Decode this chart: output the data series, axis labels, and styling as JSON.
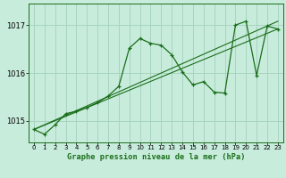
{
  "xlabel": "Graphe pression niveau de la mer (hPa)",
  "background_color": "#c8ecdc",
  "grid_color": "#a8d4c0",
  "line_color": "#1a6e1a",
  "ylim": [
    1014.55,
    1017.45
  ],
  "xlim": [
    -0.5,
    23.5
  ],
  "yticks": [
    1015,
    1016,
    1017
  ],
  "xticks": [
    0,
    1,
    2,
    3,
    4,
    5,
    6,
    7,
    8,
    9,
    10,
    11,
    12,
    13,
    14,
    15,
    16,
    17,
    18,
    19,
    20,
    21,
    22,
    23
  ],
  "series1_x": [
    0,
    1,
    2,
    3,
    4,
    5,
    6,
    7,
    8,
    9,
    10,
    11,
    12,
    13,
    14,
    15,
    16,
    17,
    18,
    19,
    20,
    21,
    22,
    23
  ],
  "series1_y": [
    1014.82,
    1014.72,
    1014.92,
    1015.15,
    1015.2,
    1015.28,
    1015.38,
    1015.52,
    1015.72,
    1016.52,
    1016.72,
    1016.62,
    1016.58,
    1016.38,
    1016.02,
    1015.75,
    1015.82,
    1015.6,
    1015.58,
    1017.0,
    1017.08,
    1015.95,
    1016.98,
    1016.92
  ],
  "series2_x": [
    0,
    23
  ],
  "series2_y": [
    1014.82,
    1016.92
  ],
  "series3_x": [
    0,
    23
  ],
  "series3_y": [
    1014.82,
    1017.08
  ]
}
